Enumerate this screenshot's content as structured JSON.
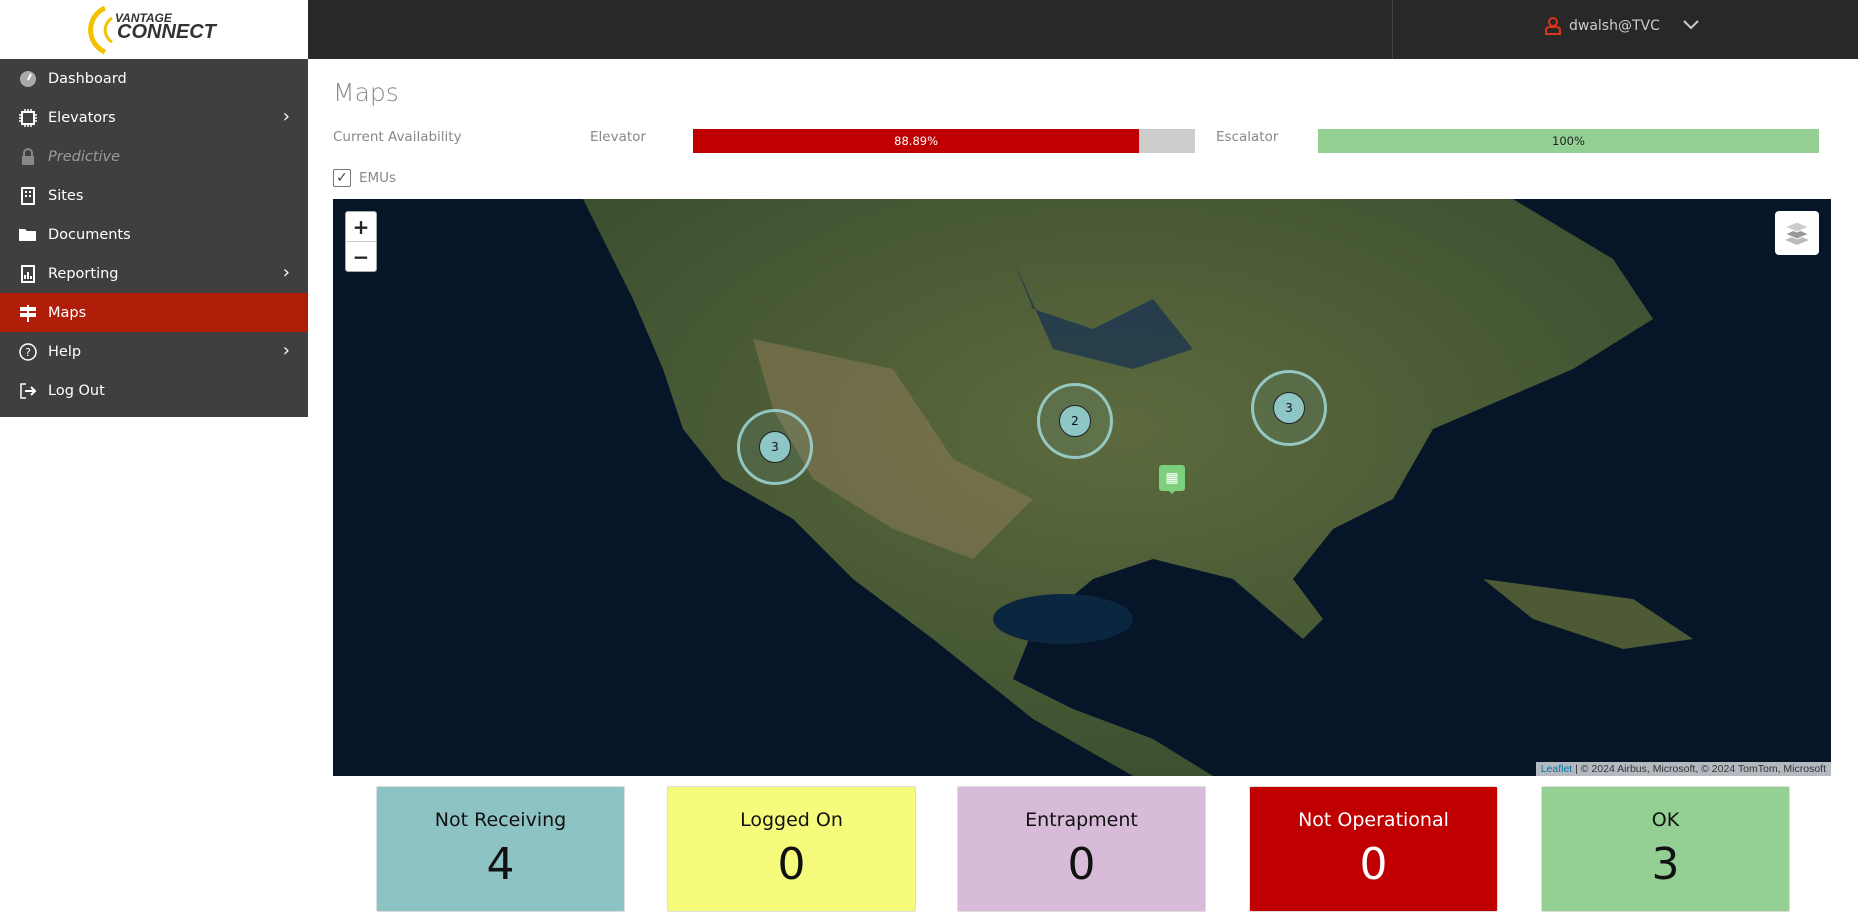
{
  "header": {
    "logo_text": "VANTAGE CONNECT",
    "user": "dwalsh@TVC",
    "user_icon": "user-icon",
    "menu_icon": "chevron-down-icon"
  },
  "sidebar": {
    "items": [
      {
        "label": "Dashboard",
        "icon": "speedometer-icon",
        "has_submenu": false
      },
      {
        "label": "Elevators",
        "icon": "chip-icon",
        "has_submenu": true
      },
      {
        "label": "Predictive",
        "icon": "lock-icon",
        "has_submenu": false,
        "disabled": true
      },
      {
        "label": "Sites",
        "icon": "building-icon",
        "has_submenu": false
      },
      {
        "label": "Documents",
        "icon": "folder-icon",
        "has_submenu": false
      },
      {
        "label": "Reporting",
        "icon": "report-icon",
        "has_submenu": true
      },
      {
        "label": "Maps",
        "icon": "signpost-icon",
        "has_submenu": false,
        "active": true
      },
      {
        "label": "Help",
        "icon": "help-icon",
        "has_submenu": true
      },
      {
        "label": "Log Out",
        "icon": "logout-icon",
        "has_submenu": false
      }
    ]
  },
  "page": {
    "title": "Maps"
  },
  "availability": {
    "label": "Current Availability",
    "elevator": {
      "label": "Elevator",
      "value_text": "88.89%",
      "percent": 88.89,
      "color": "#c00000"
    },
    "escalator": {
      "label": "Escalator",
      "value_text": "100%",
      "percent": 100,
      "color": "#94cf94"
    }
  },
  "emus": {
    "label": "EMUs",
    "checked": true
  },
  "map": {
    "zoom_in": "+",
    "zoom_out": "−",
    "attribution_link": "Leaflet",
    "attribution": " | © 2024 Airbus, Microsoft, © 2024 TomTom, Microsoft",
    "clusters": [
      {
        "count": "3"
      },
      {
        "count": "2"
      },
      {
        "count": "3"
      }
    ]
  },
  "cards": [
    {
      "label": "Not Receiving",
      "value": "4",
      "bg": "#8ec3c3",
      "fg": "#111"
    },
    {
      "label": "Logged On",
      "value": "0",
      "bg": "#f5fb7a",
      "fg": "#111"
    },
    {
      "label": "Entrapment",
      "value": "0",
      "bg": "#d8bbd8",
      "fg": "#111"
    },
    {
      "label": "Not Operational",
      "value": "0",
      "bg": "#c00000",
      "fg": "#fff"
    },
    {
      "label": "OK",
      "value": "3",
      "bg": "#94cf94",
      "fg": "#111"
    }
  ]
}
